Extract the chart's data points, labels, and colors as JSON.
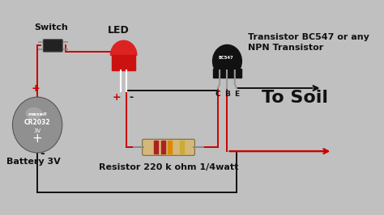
{
  "bg_color": "#c0c0c0",
  "components": {
    "switch_label": "Switch",
    "led_label": "LED",
    "transistor_label": "Transistor BC547 or any\nNPN Transistor",
    "battery_label": "Battery 3V",
    "resistor_label": "Resistor 220 k ohm 1/4watt",
    "to_soil_label": "To Soil",
    "transistor_chip": "BC547",
    "battery_brand": "maxell",
    "battery_model": "CR2032",
    "battery_voltage": "3V"
  },
  "wire_color_red": "#cc0000",
  "wire_color_black": "#111111",
  "label_fontsize": 8,
  "transistor_label_fontsize": 8,
  "to_soil_fontsize": 16,
  "lw": 1.4,
  "xlim": [
    0,
    10
  ],
  "ylim": [
    0,
    5.5
  ]
}
